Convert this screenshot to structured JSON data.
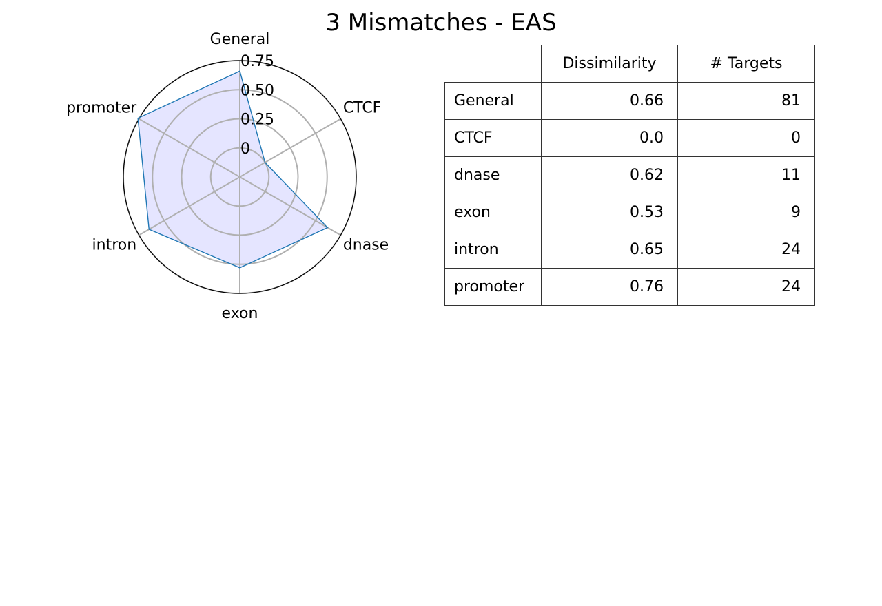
{
  "title": "3 Mismatches - EAS",
  "chart_data": {
    "type": "radar",
    "categories": [
      "General",
      "CTCF",
      "dnase",
      "exon",
      "intron",
      "promoter"
    ],
    "values": [
      0.66,
      0.0,
      0.62,
      0.53,
      0.65,
      0.76
    ],
    "radial_ticks": [
      "0",
      "0.25",
      "0.50",
      "0.75"
    ],
    "radial_tick_values": [
      0,
      0.25,
      0.5,
      0.75
    ],
    "rlim": [
      -0.25,
      0.75
    ],
    "fill_color": "#e5e5ff",
    "line_color": "#1f77b4",
    "grid_color": "#b0b0b0"
  },
  "table": {
    "headers": [
      "Dissimilarity",
      "# Targets"
    ],
    "rows": [
      {
        "label": "General",
        "dissimilarity": "0.66",
        "targets": "81"
      },
      {
        "label": "CTCF",
        "dissimilarity": "0.0",
        "targets": "0"
      },
      {
        "label": "dnase",
        "dissimilarity": "0.62",
        "targets": "11"
      },
      {
        "label": "exon",
        "dissimilarity": "0.53",
        "targets": "9"
      },
      {
        "label": "intron",
        "dissimilarity": "0.65",
        "targets": "24"
      },
      {
        "label": "promoter",
        "dissimilarity": "0.76",
        "targets": "24"
      }
    ]
  }
}
